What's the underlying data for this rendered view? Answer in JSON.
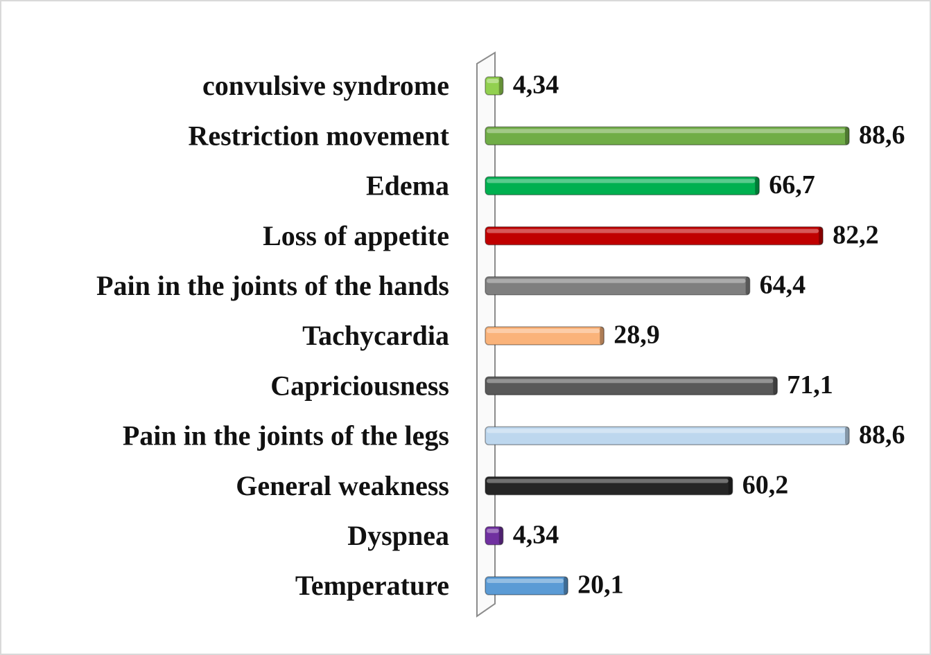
{
  "chart_data": {
    "type": "hbar",
    "categories": [
      "convulsive syndrome",
      "Restriction movement",
      "Edema",
      "Loss of appetite",
      "Pain in the joints of the hands",
      "Tachycardia",
      "Capriciousness",
      "Pain in the joints of the legs",
      "General weakness",
      "Dyspnea",
      "Temperature"
    ],
    "values": [
      4.34,
      88.6,
      66.7,
      82.2,
      64.4,
      28.9,
      71.1,
      88.6,
      60.2,
      4.34,
      20.1
    ],
    "value_labels": [
      "4,34",
      "88,6",
      "66,7",
      "82,2",
      "64,4",
      "28,9",
      "71,1",
      "88,6",
      "60,2",
      "4,34",
      "20,1"
    ],
    "colors": [
      "#92d050",
      "#70ad47",
      "#00b050",
      "#c00000",
      "#7f7f7f",
      "#fab37a",
      "#595959",
      "#bdd7ee",
      "#262626",
      "#7030a0",
      "#5b9bd5"
    ]
  }
}
